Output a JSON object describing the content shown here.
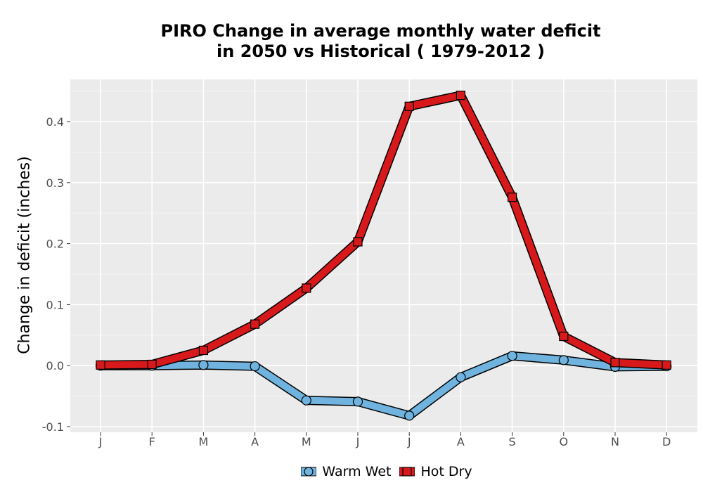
{
  "chart_data": {
    "type": "line",
    "title": "PIRO  Change in average monthly water deficit",
    "subtitle": "in 2050 vs Historical ( 1979-2012 )",
    "xlabel": "",
    "ylabel": "Change in deficit (inches)",
    "categories": [
      "J",
      "F",
      "M",
      "A",
      "M",
      "J",
      "J",
      "A",
      "S",
      "O",
      "N",
      "D"
    ],
    "ylim": [
      -0.1,
      0.46
    ],
    "yticks": [
      -0.1,
      0.0,
      0.1,
      0.2,
      0.3,
      0.4
    ],
    "ytick_labels": [
      "-0.1",
      "0.0",
      "0.1",
      "0.2",
      "0.3",
      "0.4"
    ],
    "grid": true,
    "legend_position": "bottom",
    "series": [
      {
        "name": "Warm Wet",
        "marker": "circle",
        "color": "#6fb3de",
        "values": [
          0.0,
          0.0,
          0.001,
          -0.001,
          -0.057,
          -0.059,
          -0.082,
          -0.019,
          0.016,
          0.009,
          -0.002,
          -0.001
        ]
      },
      {
        "name": "Hot Dry",
        "marker": "square",
        "color": "#d7191c",
        "values": [
          0.001,
          0.002,
          0.025,
          0.068,
          0.127,
          0.203,
          0.425,
          0.443,
          0.276,
          0.048,
          0.005,
          0.001
        ]
      }
    ]
  }
}
